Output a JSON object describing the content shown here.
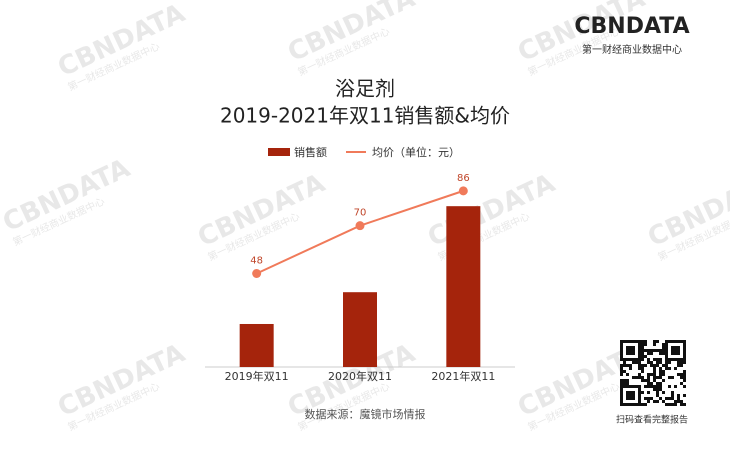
{
  "chart_data": {
    "type": "bar",
    "title": "浴足剂",
    "subtitle": "2019-2021年双11销售额&均价",
    "categories": [
      "2019年双11",
      "2020年双11",
      "2021年双11"
    ],
    "series": [
      {
        "name": "销售额",
        "color": "#a5240c",
        "values": [
          23,
          40,
          86
        ]
      },
      {
        "name": "均价（单位：元）",
        "type": "line",
        "axis": "y2",
        "color": "#f07a5a",
        "values": [
          48,
          70,
          86
        ]
      }
    ],
    "ylim": [
      0,
      100
    ],
    "y2lim": [
      5,
      91
    ],
    "source": "数据来源：魔镜市场情报"
  },
  "logo": {
    "title": "CBNDATA",
    "subtitle": "第一财经商业数据中心"
  },
  "qr_caption": "扫码查看完整报告"
}
